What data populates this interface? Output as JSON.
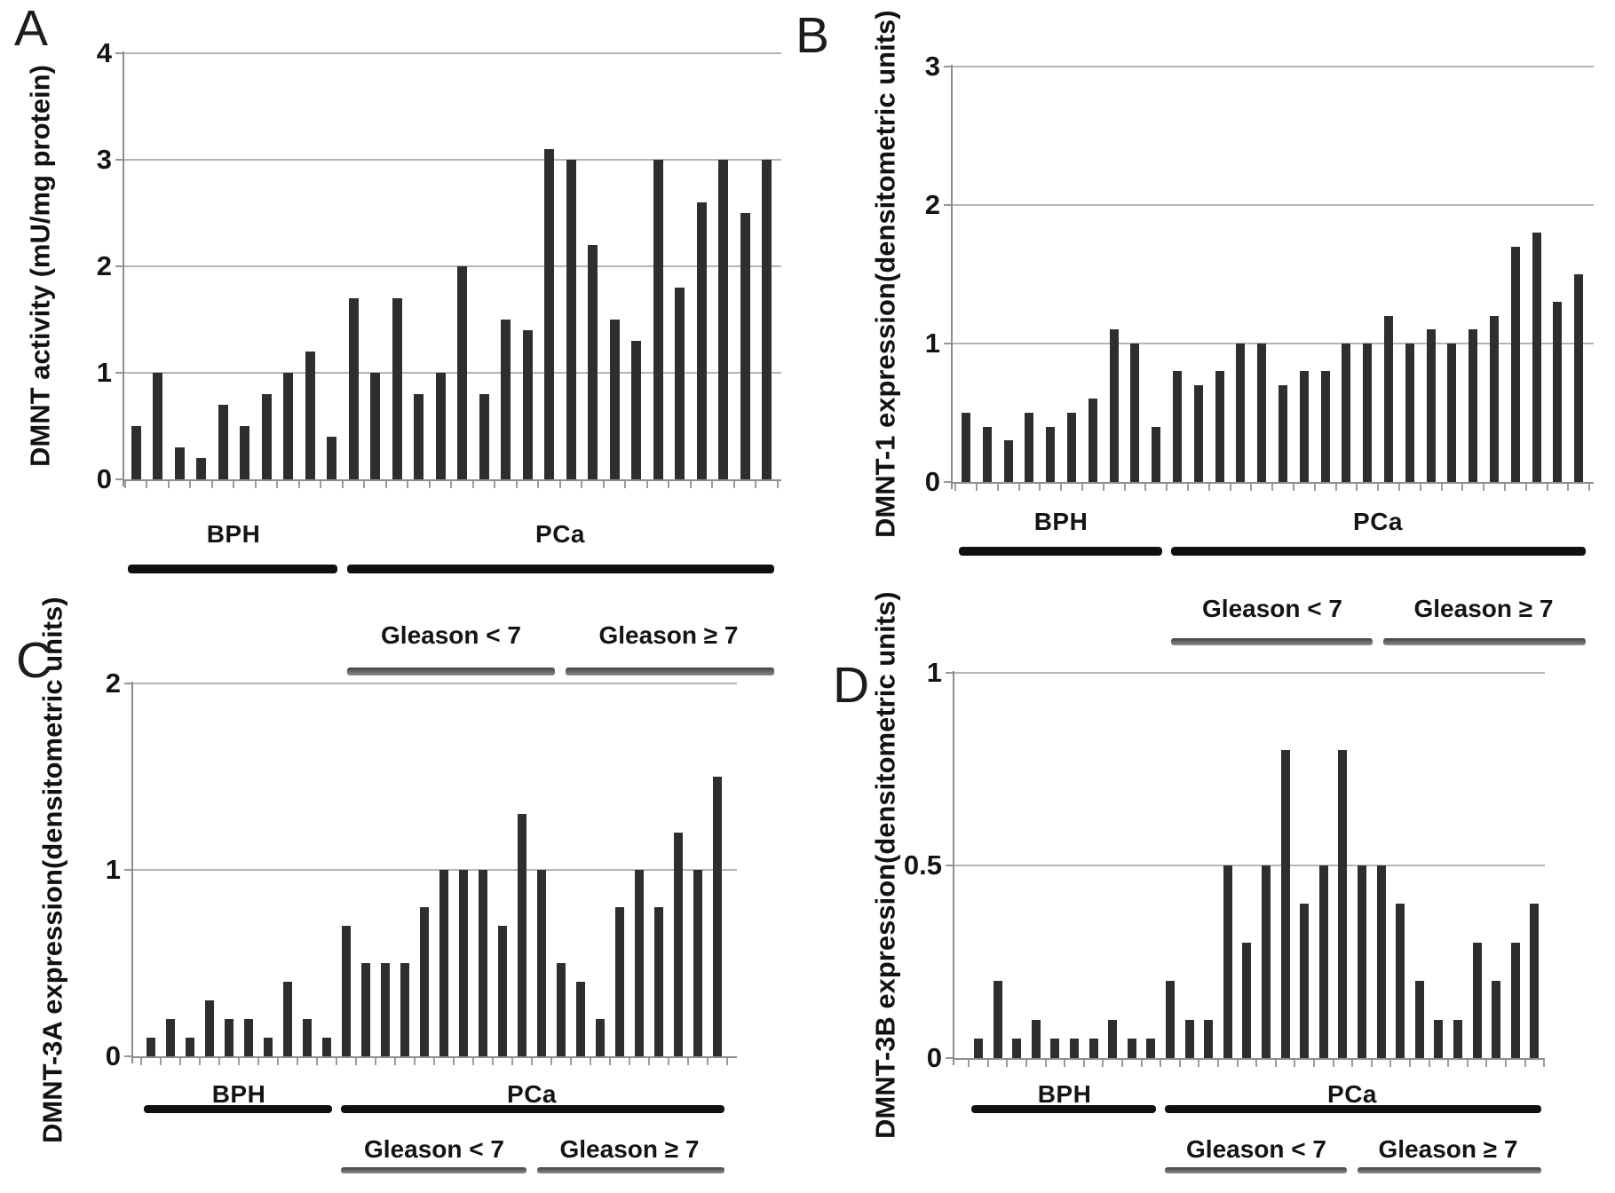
{
  "figure": {
    "background_color": "#ffffff",
    "bar_color": "#2e2e2e",
    "gridline_color": "#b5b5b5",
    "axis_color": "#8d8d8d",
    "group_line_color": "#101010",
    "gleason_line_color": "#5a5a5a"
  },
  "chart_data": [
    {
      "panel_letter": "A",
      "type": "bar",
      "ylabel_lines": [
        "DMNT activity (mU/mg protein)"
      ],
      "ylim": [
        0,
        4
      ],
      "grid": true,
      "legend": "none",
      "yticks": [
        {
          "value": 4,
          "label": "4"
        },
        {
          "value": 3,
          "label": "3"
        },
        {
          "value": 2,
          "label": "2"
        },
        {
          "value": 1,
          "label": "1"
        },
        {
          "value": 0,
          "label": "0"
        }
      ],
      "groups": {
        "bph": {
          "label": "BPH",
          "values": [
            0.5,
            1.0,
            0.3,
            0.2,
            0.7,
            0.5,
            0.8,
            1.0,
            1.2,
            0.4
          ]
        },
        "pca": {
          "label": "PCa",
          "subgroups": {
            "gleason_lt7": {
              "label": "Gleason < 7",
              "values": [
                1.7,
                1.0,
                1.7,
                0.8,
                1.0,
                2.0,
                0.8,
                1.5,
                1.4,
                3.1
              ]
            },
            "gleason_ge7": {
              "label": "Gleason ≥ 7",
              "values": [
                3.0,
                2.2,
                1.5,
                1.3,
                3.0,
                1.8,
                2.6,
                3.0,
                2.5,
                3.0
              ]
            }
          }
        }
      }
    },
    {
      "panel_letter": "B",
      "type": "bar",
      "ylabel_lines": [
        "DMNT-1 expression",
        "(densitometric units)"
      ],
      "ylim": [
        0,
        3
      ],
      "grid": true,
      "legend": "none",
      "yticks": [
        {
          "value": 3,
          "label": "3"
        },
        {
          "value": 2,
          "label": "2"
        },
        {
          "value": 1,
          "label": "1"
        },
        {
          "value": 0,
          "label": "0"
        }
      ],
      "groups": {
        "bph": {
          "label": "BPH",
          "values": [
            0.5,
            0.4,
            0.3,
            0.5,
            0.4,
            0.5,
            0.6,
            1.1,
            1.0,
            0.4
          ]
        },
        "pca": {
          "label": "PCa",
          "subgroups": {
            "gleason_lt7": {
              "label": "Gleason < 7",
              "values": [
                0.8,
                0.7,
                0.8,
                1.0,
                1.0,
                0.7,
                0.8,
                0.8,
                1.0,
                1.0
              ]
            },
            "gleason_ge7": {
              "label": "Gleason ≥ 7",
              "values": [
                1.2,
                1.0,
                1.1,
                1.0,
                1.1,
                1.2,
                1.7,
                1.8,
                1.3,
                1.5
              ]
            }
          }
        }
      }
    },
    {
      "panel_letter": "C",
      "type": "bar",
      "ylabel_lines": [
        "DMNT-3A expression",
        "(densitometric units)"
      ],
      "ylim": [
        0,
        2
      ],
      "grid": true,
      "legend": "none",
      "yticks": [
        {
          "value": 2,
          "label": "2"
        },
        {
          "value": 1,
          "label": "1"
        },
        {
          "value": 0,
          "label": "0"
        }
      ],
      "groups": {
        "bph": {
          "label": "BPH",
          "values": [
            0.1,
            0.2,
            0.1,
            0.3,
            0.2,
            0.2,
            0.1,
            0.4,
            0.2,
            0.1
          ]
        },
        "pca": {
          "label": "PCa",
          "subgroups": {
            "gleason_lt7": {
              "label": "Gleason < 7",
              "values": [
                0.7,
                0.5,
                0.5,
                0.5,
                0.8,
                1.0,
                1.0,
                1.0,
                0.7,
                1.3
              ]
            },
            "gleason_ge7": {
              "label": "Gleason ≥ 7",
              "values": [
                1.0,
                0.5,
                0.4,
                0.2,
                0.8,
                1.0,
                0.8,
                1.2,
                1.0,
                1.5
              ]
            }
          }
        }
      }
    },
    {
      "panel_letter": "D",
      "type": "bar",
      "ylabel_lines": [
        "DMNT-3B expression",
        "(densitometric units)"
      ],
      "ylim": [
        0,
        1
      ],
      "grid": true,
      "legend": "none",
      "yticks": [
        {
          "value": 1,
          "label": "1"
        },
        {
          "value": 0.5,
          "label": "0.5"
        },
        {
          "value": 0,
          "label": "0"
        }
      ],
      "groups": {
        "bph": {
          "label": "BPH",
          "values": [
            0.05,
            0.2,
            0.05,
            0.1,
            0.05,
            0.05,
            0.05,
            0.1,
            0.05,
            0.05
          ]
        },
        "pca": {
          "label": "PCa",
          "subgroups": {
            "gleason_lt7": {
              "label": "Gleason < 7",
              "values": [
                0.2,
                0.1,
                0.1,
                0.5,
                0.3,
                0.5,
                0.8,
                0.4,
                0.5,
                0.8
              ]
            },
            "gleason_ge7": {
              "label": "Gleason ≥ 7",
              "values": [
                0.5,
                0.5,
                0.4,
                0.2,
                0.1,
                0.1,
                0.3,
                0.2,
                0.3,
                0.4
              ]
            }
          }
        }
      }
    }
  ]
}
